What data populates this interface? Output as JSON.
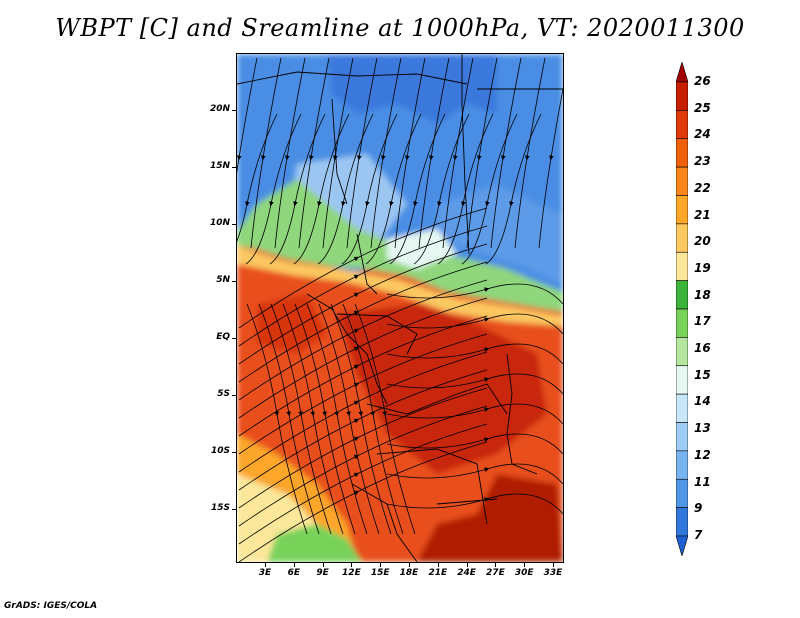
{
  "title": "WBPT [C] and Sreamline at 1000hPa, VT: 2020011300",
  "footer": "GrADS: IGES/COLA",
  "lat_labels": [
    "20N",
    "15N",
    "10N",
    "5N",
    "EQ",
    "5S",
    "10S",
    "15S"
  ],
  "lon_labels": [
    "3E",
    "6E",
    "9E",
    "12E",
    "15E",
    "18E",
    "21E",
    "24E",
    "27E",
    "30E",
    "33E"
  ],
  "colorbar": {
    "labels": [
      "26",
      "25",
      "24",
      "23",
      "22",
      "21",
      "20",
      "19",
      "18",
      "17",
      "16",
      "15",
      "14",
      "13",
      "12",
      "11",
      "9",
      "7"
    ],
    "colors": [
      "#a50000",
      "#c81e00",
      "#e03a0a",
      "#f0600a",
      "#f8861a",
      "#fca62a",
      "#fcc860",
      "#fce79a",
      "#3cb43c",
      "#78d25a",
      "#b4e6a0",
      "#e6f8f2",
      "#c8e6fa",
      "#a0cdf5",
      "#78b4f0",
      "#5096e6",
      "#3278dc",
      "#1e5fd2"
    ]
  },
  "map": {
    "variable": "wet-bulb potential temperature",
    "features": [
      "streamlines",
      "country borders",
      "coastlines"
    ]
  }
}
